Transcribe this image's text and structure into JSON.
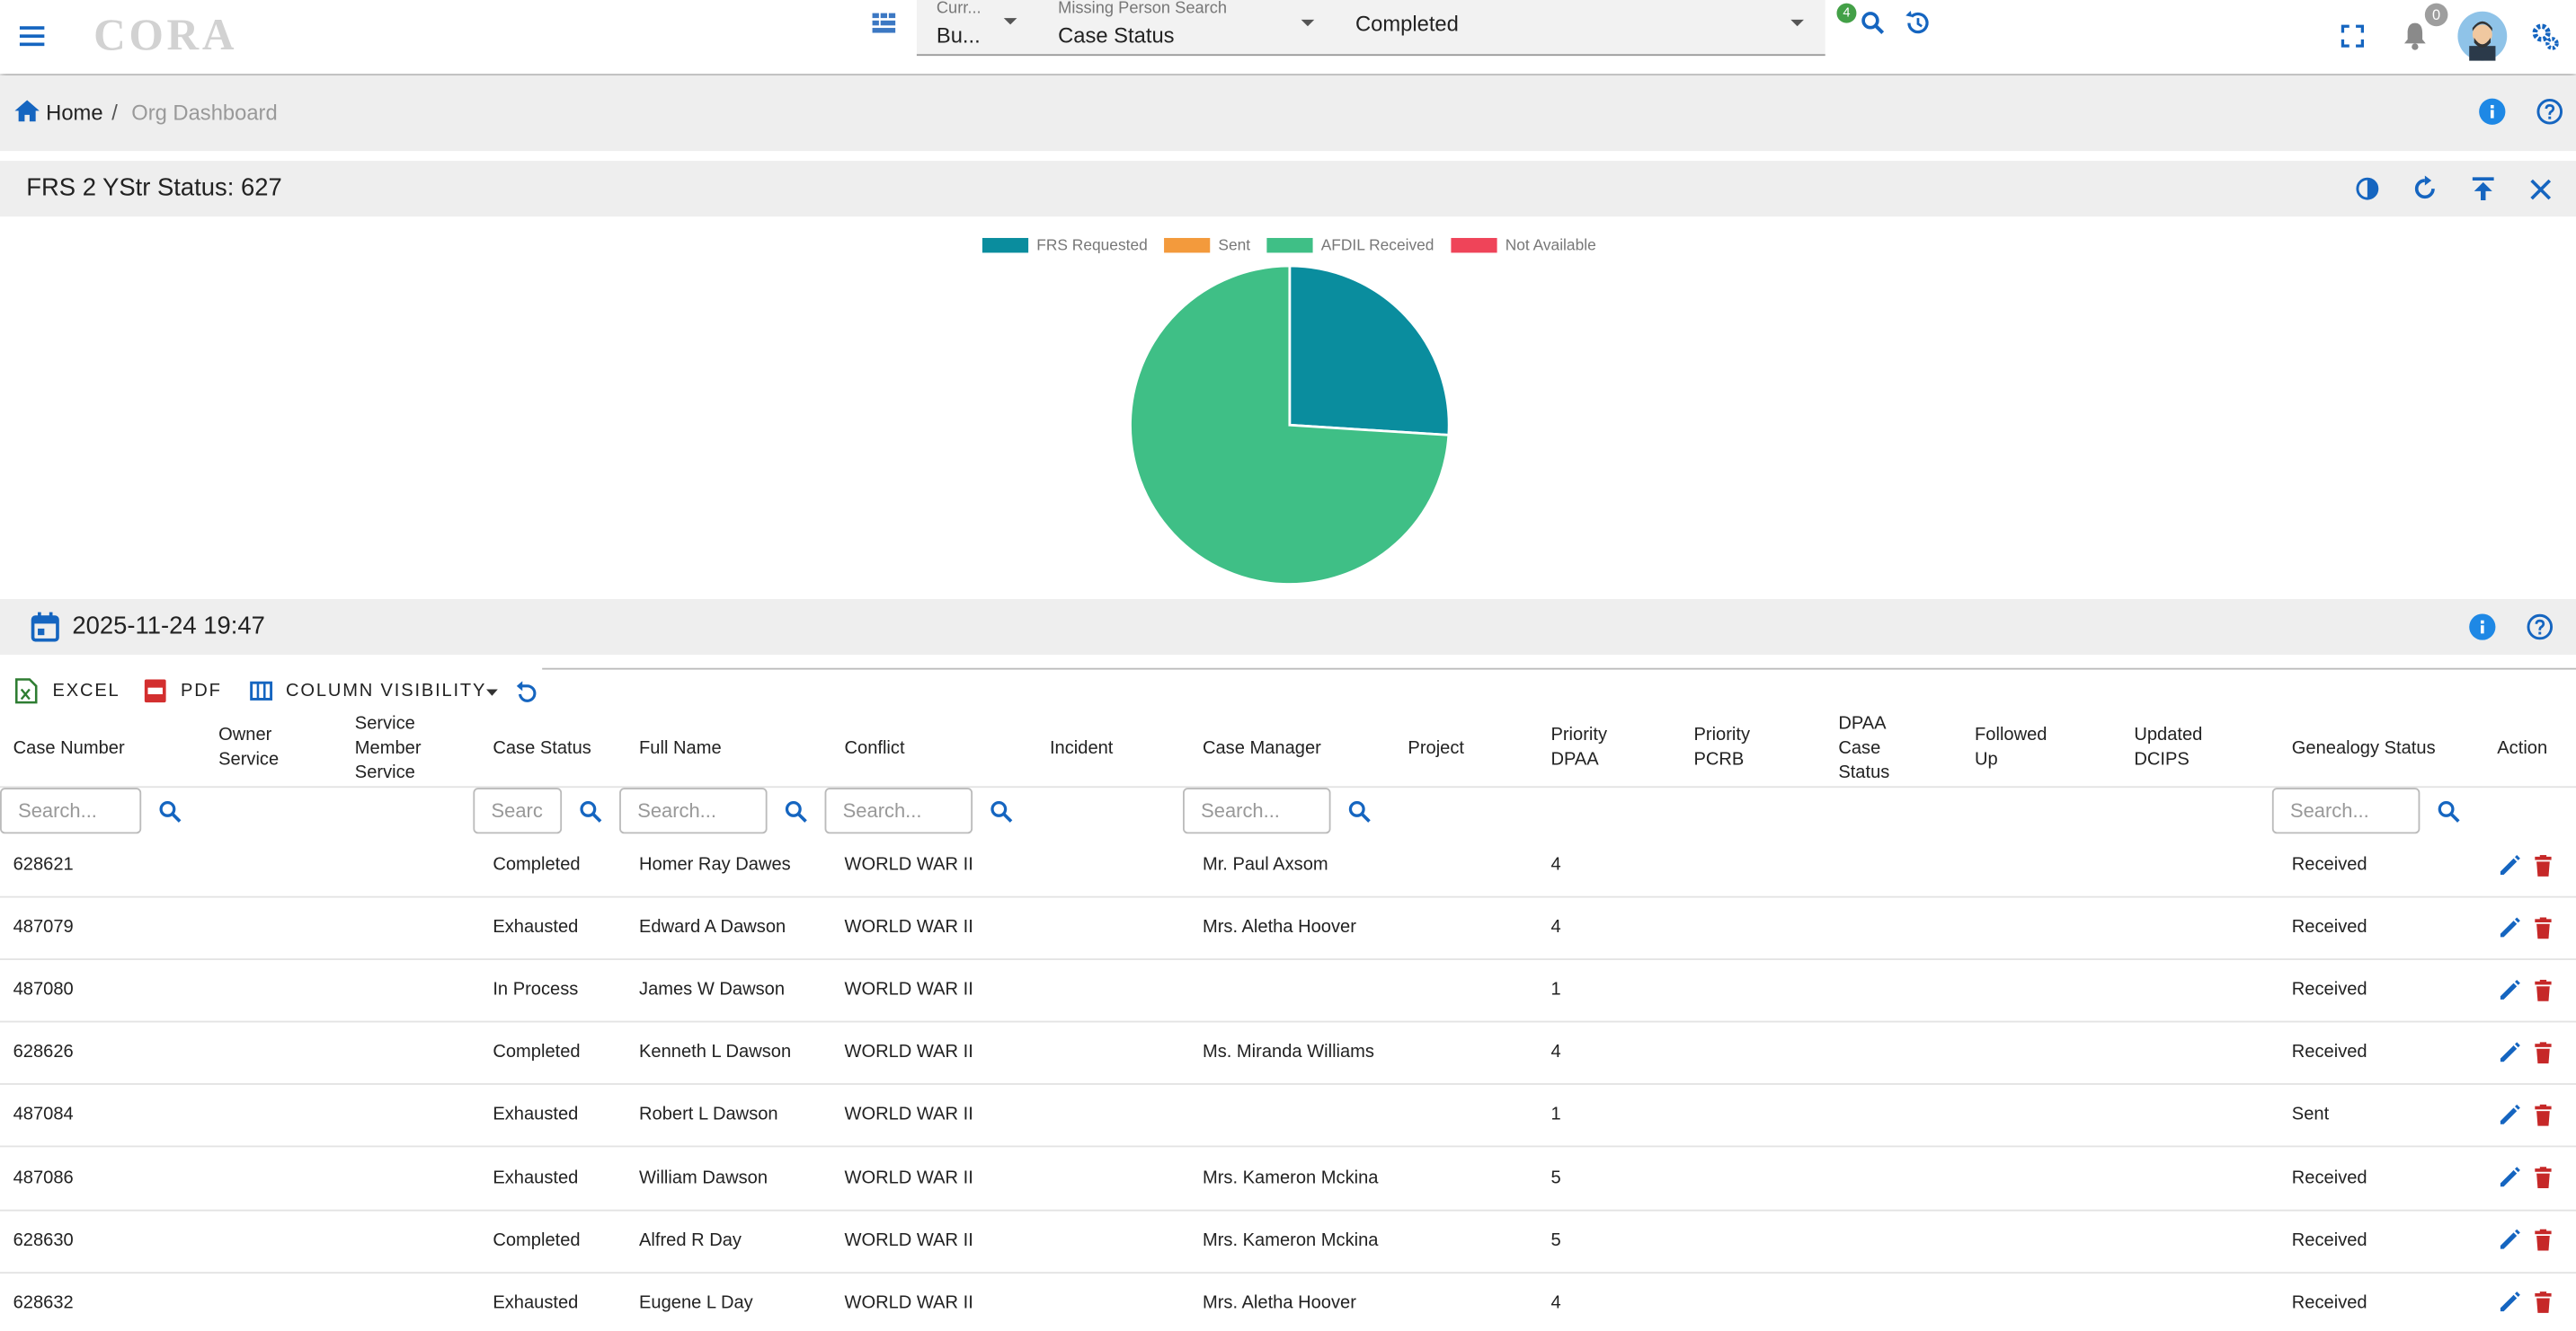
{
  "header": {
    "logo": "CORA",
    "field1_label": "Curr...",
    "field1_value": "Bu...",
    "field2_label": "Missing Person Search",
    "field2_value": "Case Status",
    "field3_value": "Completed",
    "search_badge": "4",
    "notification_badge": "0"
  },
  "breadcrumb": {
    "home": "Home",
    "separator": "/",
    "current": "Org Dashboard"
  },
  "chart_data": {
    "type": "pie",
    "title": "FRS 2 YStr Status: 627",
    "categories": [
      "FRS Requested",
      "Sent",
      "AFDIL Received",
      "Not Available"
    ],
    "values": [
      26,
      0,
      74,
      0
    ],
    "colors": [
      "#0a8d9e",
      "#f39a3c",
      "#3fbf86",
      "#ef4459"
    ],
    "legend": "top"
  },
  "date_bar": {
    "date": "2025-11-24 19:47"
  },
  "toolbar": {
    "excel": "EXCEL",
    "pdf": "PDF",
    "column_visibility": "COLUMN VISIBILITY"
  },
  "table": {
    "search_placeholder": "Search...",
    "columns": [
      {
        "key": "case_number",
        "label": "Case Number",
        "search": true
      },
      {
        "key": "owner_service",
        "label": "Owner Service"
      },
      {
        "key": "service_member_service",
        "label": "Service Member Service"
      },
      {
        "key": "case_status",
        "label": "Case Status",
        "search": true
      },
      {
        "key": "full_name",
        "label": "Full Name",
        "search": true
      },
      {
        "key": "conflict",
        "label": "Conflict",
        "search": true
      },
      {
        "key": "incident",
        "label": "Incident"
      },
      {
        "key": "case_manager",
        "label": "Case Manager",
        "search": true
      },
      {
        "key": "project",
        "label": "Project"
      },
      {
        "key": "priority_dpaa",
        "label": "Priority DPAA"
      },
      {
        "key": "priority_pcrb",
        "label": "Priority PCRB"
      },
      {
        "key": "dpaa_case_status",
        "label": "DPAA Case Status"
      },
      {
        "key": "followed_up",
        "label": "Followed Up"
      },
      {
        "key": "updated_dcips",
        "label": "Updated DCIPS"
      },
      {
        "key": "genealogy_status",
        "label": "Genealogy Status",
        "search": true
      },
      {
        "key": "action",
        "label": "Action"
      }
    ],
    "rows": [
      {
        "case_number": "628621",
        "case_status": "Completed",
        "full_name": "Homer Ray Dawes",
        "conflict": "WORLD WAR II",
        "case_manager": "Mr. Paul Axsom",
        "priority_dpaa": 4,
        "genealogy_status": "Received"
      },
      {
        "case_number": "487079",
        "case_status": "Exhausted",
        "full_name": "Edward A Dawson",
        "conflict": "WORLD WAR II",
        "case_manager": "Mrs. Aletha Hoover",
        "priority_dpaa": 4,
        "genealogy_status": "Received"
      },
      {
        "case_number": "487080",
        "case_status": "In Process",
        "full_name": "James W Dawson",
        "conflict": "WORLD WAR II",
        "priority_dpaa": 1,
        "genealogy_status": "Received"
      },
      {
        "case_number": "628626",
        "case_status": "Completed",
        "full_name": "Kenneth L Dawson",
        "conflict": "WORLD WAR II",
        "case_manager": "Ms. Miranda Williams",
        "priority_dpaa": 4,
        "genealogy_status": "Received"
      },
      {
        "case_number": "487084",
        "case_status": "Exhausted",
        "full_name": "Robert L Dawson",
        "conflict": "WORLD WAR II",
        "priority_dpaa": 1,
        "genealogy_status": "Sent"
      },
      {
        "case_number": "487086",
        "case_status": "Exhausted",
        "full_name": "William Dawson",
        "conflict": "WORLD WAR II",
        "case_manager": "Mrs. Kameron Mckina",
        "priority_dpaa": 5,
        "genealogy_status": "Received"
      },
      {
        "case_number": "628630",
        "case_status": "Completed",
        "full_name": "Alfred R Day",
        "conflict": "WORLD WAR II",
        "case_manager": "Mrs. Kameron Mckina",
        "priority_dpaa": 5,
        "genealogy_status": "Received"
      },
      {
        "case_number": "628632",
        "case_status": "Exhausted",
        "full_name": "Eugene L Day",
        "conflict": "WORLD WAR II",
        "case_manager": "Mrs. Aletha Hoover",
        "priority_dpaa": 4,
        "genealogy_status": "Received"
      }
    ]
  }
}
